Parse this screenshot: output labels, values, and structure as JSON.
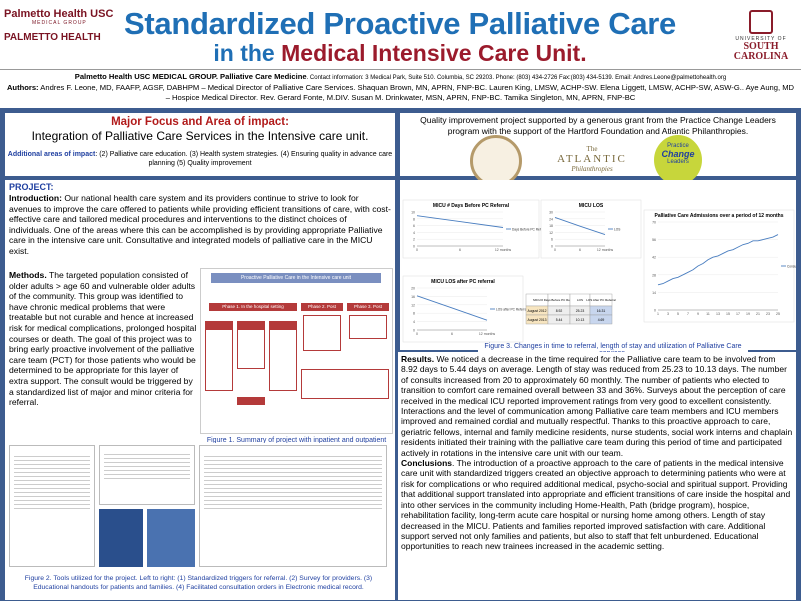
{
  "header": {
    "logo_left_line1": "Palmetto Health USC",
    "logo_left_line2": "MEDICAL GROUP",
    "logo_left_line3": "PALMETTO HEALTH",
    "title_line1": "Standardized Proactive Palliative Care",
    "title_line2_a": "in the ",
    "title_line2_b": "Medical Intensive Care Unit.",
    "logo_right_line1": "UNIVERSITY OF",
    "logo_right_line2": "SOUTH",
    "logo_right_line3": "CAROLINA"
  },
  "authors": {
    "org": "Palmetto Health USC MEDICAL GROUP.  Palliative Care Medicine",
    "contact": ". Contact information: 3 Medical Park, Suite 510. Columbia, SC 29203. Phone: (803) 434-2726  Fax:(803) 434-5139. Email: Andres.Leone@palmettohealth.org",
    "label": "Authors:",
    "text": " Andres F. Leone, MD, FAAFP, AGSF, DABHPM – Medical Director of Palliative Care Services. Shaquan Brown, MN, APRN, FNP-BC. Lauren King, LMSW, ACHP-SW. Elena Liggett, LMSW, ACHP-SW, ASW-G.. Aye Aung, MD – Hospice Medical Director. Rev. Gerard Fonte, M.DIV. Susan M. Drinkwater, MSN, APRN, FNP-BC. Tamika Singleton, MN, APRN, FNP-BC"
  },
  "focus": {
    "heading": "Major Focus and Area of impact:",
    "subheading": "Integration of Palliative Care Services in the Intensive care unit.",
    "additional_label": "Additional areas of impact",
    "additional_text": ": (2) Palliative care education. (3) Health system strategies. (4) Ensuring quality in advance care planning (5) Quality improvement"
  },
  "grant": {
    "text": "Quality improvement project supported by a generous grant from the Practice Change Leaders program with the support of the Hartford Foundation and Atlantic Philanthropies.",
    "atlantic_the": "The",
    "atlantic_name": "ATLANTIC",
    "atlantic_sub": "Philanthropies",
    "pcl_1": "Practice",
    "pcl_2": "Change",
    "pcl_3": "Leaders"
  },
  "project": {
    "heading": "PROJECT:",
    "intro_label": "Introduction:",
    "intro_text": " Our national health care system and its providers continue to strive to look for avenues to improve the care offered to patients while providing efficient transitions of care, with cost-effective care and tailored medical procedures and interventions to the distinct choices of individuals. One of the areas where this can be accomplished is by providing appropriate Palliative care in the intensive care unit. Consultative and integrated models of palliative care in the MICU exist.",
    "methods_label": "Methods.",
    "methods_text": " The targeted population consisted of older adults > age 60 and vulnerable older adults of the community. This group was identified to have chronic medical problems that were treatable but not curable and hence at increased risk for medical complications, prolonged hospital courses or death. The goal of this project was to bring early proactive involvement of the palliative care team (PCT) for those patients who would be determined to be appropriate for this layer of extra support. The consult would be triggered by a standardized list of major and minor criteria for referral.",
    "fig1_title": "Proactive Palliative Care in the Intensive care unit",
    "fig1_phase1": "Phase 1. In the hospital setting",
    "fig1_phase2": "Phase 2. Post Hospital",
    "fig1_phase3": "Phase 3. Post hospital",
    "fig1_caption": "Figure 1. Summary of project with inpatient and outpatient components.",
    "fig2_caption": "Figure 2. Tools utilized for the project. Left to right: (1) Standardized triggers for referral. (2) Survey for providers. (3) Educational handouts for patients and families. (4) Facilitated consultation orders in Electronic medical record."
  },
  "charts": {
    "caption": "Figure 3. Changes in time to referral, length of stay and utilization of Palliative Care services.",
    "chart_data": [
      {
        "type": "line",
        "title": "MICU # Days Before PC Referral",
        "x": [
          "0",
          "6",
          "12 months"
        ],
        "series": [
          {
            "name": "Days Before PC Referral",
            "values": [
              8.92,
              7.2,
              5.44
            ]
          }
        ],
        "ylim": [
          0,
          10
        ]
      },
      {
        "type": "line",
        "title": "MICU LOS",
        "x": [
          "0",
          "6",
          "12 months"
        ],
        "series": [
          {
            "name": "LOS",
            "values": [
              25.23,
              17.5,
              10.13
            ]
          }
        ],
        "ylim": [
          0,
          30
        ]
      },
      {
        "type": "line",
        "title": "MICU LOS after PC referral",
        "x": [
          "0",
          "6",
          "12 months"
        ],
        "series": [
          {
            "name": "LOS after PC Referral",
            "values": [
              16.3,
              10.5,
              4.69
            ]
          }
        ],
        "ylim": [
          0,
          20
        ]
      },
      {
        "type": "table",
        "columns": [
          "MICU",
          "# Days Before PC Referral",
          "LOS",
          "LOS After PC Referral"
        ],
        "rows": [
          [
            "August 2012",
            "8.92",
            "25.23",
            "16.31"
          ],
          [
            "August 2013",
            "5.44",
            "10.13",
            "4.69"
          ]
        ]
      },
      {
        "type": "line",
        "title": "Palliative Care Admissions over a period of 12 months",
        "x": [
          "1",
          "2",
          "3",
          "4",
          "5",
          "6",
          "7",
          "8",
          "9",
          "10",
          "11",
          "12",
          "13",
          "14",
          "15",
          "16",
          "17",
          "18",
          "19",
          "20",
          "21",
          "22",
          "23",
          "24",
          "25"
        ],
        "series": [
          {
            "name": "Consults",
            "values": [
              20,
              21,
              23,
              25,
              26,
              28,
              30,
              32,
              35,
              37,
              40,
              42,
              43,
              45,
              47,
              48,
              50,
              52,
              53,
              55,
              55,
              56,
              57,
              58,
              60
            ]
          }
        ],
        "ylim": [
          0,
          70
        ]
      }
    ]
  },
  "results": {
    "label": "Results.",
    "text": " We noticed a decrease in the time required for the Palliative care team to be involved from 8.92 days to 5.44 days on average. Length of stay was reduced from 25.23 to 10.13 days. The number of consults increased from 20 to approximately 60 monthly. The number of patients who elected to transition to comfort care remained overall between 33 and 36%. Surveys about the perception of care received in the medical ICU reported improvement ratings from very good to excellent consistently. Interactions and the level of communication among Palliative care team members and ICU members improved and remained cordial and mutually respectful. Thanks to this proactive approach to care, geriatric fellows, internal and family medicine residents, nurse students, social work interns and chaplain residents initiated their training with the palliative care team during this period of time and participated actively in rotations in the intensive care unit with our team.",
    "conclusions_label": "Conclusions",
    "conclusions_text": ". The introduction of a proactive approach to the care of patients in the medical intensive care unit with standardized triggers created an objective approach to determining patients who were at risk for complications or who required additional medical, psycho-social and spiritual support. Providing that additional support translated into appropriate and efficient transitions of care inside the hospital and into other services in the community including Home-Health, Path (bridge program), hospice, rehabilitation facility, long-term acute care hospital or nursing home among others. Length of stay decreased in the MICU. Patients and families reported improved satisfaction with care. Additional support served not only families and patients, but also to staff that felt unburdened. Educational opportunities to reach new trainees increased in the academic setting."
  },
  "colors": {
    "accent_blue": "#1f6fb5",
    "accent_red": "#9b1b2c",
    "background": "#3d5c8f"
  }
}
